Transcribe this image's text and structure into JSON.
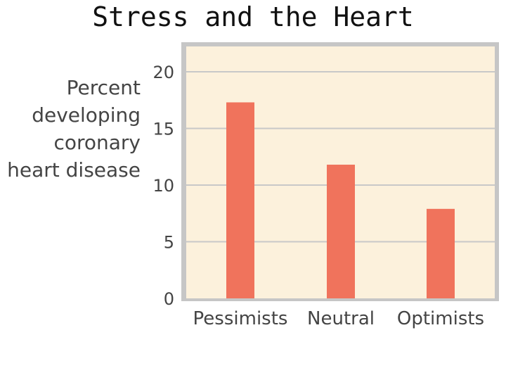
{
  "slide": {
    "title": "Stress and the Heart"
  },
  "chart_data": {
    "type": "bar",
    "title": "",
    "ylabel_lines": [
      "Percent",
      "developing",
      "coronary",
      "heart disease"
    ],
    "xlabel": "",
    "categories": [
      "Pessimists",
      "Neutral",
      "Optimists"
    ],
    "values": [
      17.3,
      11.8,
      7.9
    ],
    "ylim": [
      0,
      20
    ],
    "yticks": [
      0,
      5,
      10,
      15,
      20
    ],
    "grid": true,
    "legend": "none",
    "colors": {
      "bar": "#f0735c",
      "plot_background": "#fcf1dc",
      "frame": "#c6c6c6",
      "gridline": "#c8c8c8",
      "tick_text": "#444444"
    }
  }
}
